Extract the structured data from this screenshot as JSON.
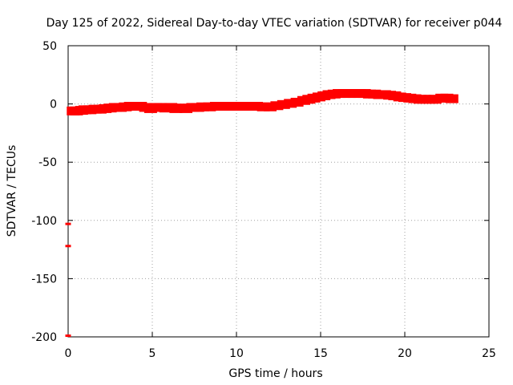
{
  "chart_data": {
    "type": "scatter",
    "title": "Day 125 of 2022, Sidereal Day-to-day VTEC variation (SDTVAR) for receiver p044",
    "xlabel": "GPS time / hours",
    "ylabel": "SDTVAR / TECUs",
    "xlim": [
      0,
      25
    ],
    "ylim": [
      -200,
      50
    ],
    "xticks": [
      0,
      5,
      10,
      15,
      20,
      25
    ],
    "yticks": [
      -200,
      -150,
      -100,
      -50,
      0,
      50
    ],
    "grid": true,
    "series": [
      {
        "name": "SDTVAR",
        "color": "#ff0000",
        "points": [
          [
            0.3,
            -6
          ],
          [
            0.5,
            -6
          ],
          [
            0.8,
            -5.5
          ],
          [
            1.0,
            -5
          ],
          [
            1.3,
            -5
          ],
          [
            1.6,
            -4.5
          ],
          [
            1.9,
            -4.5
          ],
          [
            2.2,
            -4
          ],
          [
            2.5,
            -3.5
          ],
          [
            2.8,
            -3
          ],
          [
            3.1,
            -3
          ],
          [
            3.4,
            -2.5
          ],
          [
            3.7,
            -2
          ],
          [
            4.0,
            -2
          ],
          [
            4.3,
            -2
          ],
          [
            4.6,
            -3
          ],
          [
            4.9,
            -4
          ],
          [
            5.2,
            -3
          ],
          [
            5.5,
            -3
          ],
          [
            5.8,
            -3.5
          ],
          [
            6.1,
            -3
          ],
          [
            6.4,
            -4
          ],
          [
            6.7,
            -3.5
          ],
          [
            7.0,
            -4
          ],
          [
            7.4,
            -3
          ],
          [
            7.7,
            -3
          ],
          [
            8.0,
            -2.5
          ],
          [
            8.4,
            -2.5
          ],
          [
            8.8,
            -2
          ],
          [
            9.2,
            -2
          ],
          [
            9.6,
            -2
          ],
          [
            10.0,
            -2
          ],
          [
            10.4,
            -2
          ],
          [
            10.8,
            -2
          ],
          [
            11.2,
            -2
          ],
          [
            11.6,
            -2.5
          ],
          [
            12.0,
            -2.5
          ],
          [
            12.4,
            -1.5
          ],
          [
            12.8,
            -0.5
          ],
          [
            13.2,
            0.5
          ],
          [
            13.6,
            1.5
          ],
          [
            14.0,
            3
          ],
          [
            14.3,
            4
          ],
          [
            14.6,
            5
          ],
          [
            14.9,
            6
          ],
          [
            15.2,
            7
          ],
          [
            15.5,
            8
          ],
          [
            15.8,
            8.5
          ],
          [
            16.1,
            9
          ],
          [
            16.4,
            9
          ],
          [
            16.7,
            9
          ],
          [
            17.0,
            9
          ],
          [
            17.3,
            9
          ],
          [
            17.6,
            9
          ],
          [
            17.9,
            8.5
          ],
          [
            18.2,
            8.5
          ],
          [
            18.5,
            8
          ],
          [
            18.8,
            8
          ],
          [
            19.1,
            7.5
          ],
          [
            19.4,
            7
          ],
          [
            19.7,
            6
          ],
          [
            20.0,
            5.5
          ],
          [
            20.3,
            5
          ],
          [
            20.6,
            4.5
          ],
          [
            20.9,
            4
          ],
          [
            21.2,
            4
          ],
          [
            21.5,
            4
          ],
          [
            21.8,
            4
          ],
          [
            22.2,
            5
          ],
          [
            22.5,
            5
          ],
          [
            22.8,
            4.5
          ],
          [
            0.0,
            -103
          ],
          [
            0.0,
            -122
          ],
          [
            0.0,
            -199
          ]
        ]
      }
    ]
  }
}
